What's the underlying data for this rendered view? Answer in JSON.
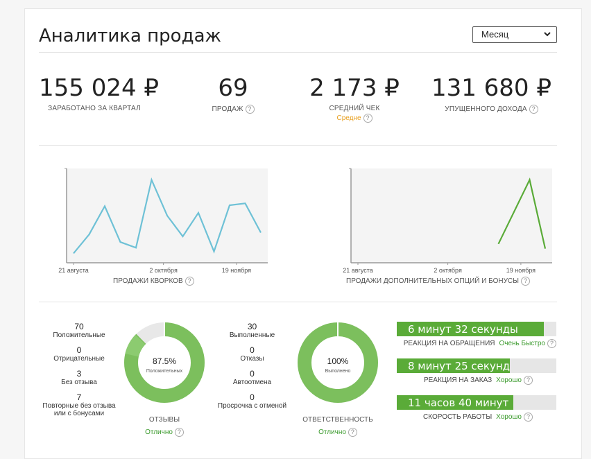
{
  "page": {
    "title": "Аналитика продаж",
    "period": "Месяц"
  },
  "kpis": [
    {
      "value": "155 024 ₽",
      "label": "ЗАРАБОТАНО ЗА КВАРТАЛ",
      "sub": ""
    },
    {
      "value": "69",
      "label": "ПРОДАЖ",
      "sub": ""
    },
    {
      "value": "2 173 ₽",
      "label": "СРЕДНИЙ ЧЕК",
      "sub": "Средне"
    },
    {
      "value": "131 680 ₽",
      "label": "УПУЩЕННОГО ДОХОДА",
      "sub": ""
    }
  ],
  "help_mark": "?",
  "chart_data": [
    {
      "type": "line",
      "title": "ПРОДАЖИ КВОРКОВ",
      "x_tick_labels": [
        "21 августа",
        "2 октября",
        "19 ноября"
      ],
      "values": [
        10,
        30,
        60,
        22,
        16,
        88,
        50,
        28,
        53,
        12,
        61,
        63,
        32
      ],
      "ylim": [
        0,
        100
      ],
      "color": "#6ec1d6"
    },
    {
      "type": "line",
      "title": "ПРОДАЖИ ДОПОЛНИТЕЛЬНЫХ ОПЦИЙ И БОНУСЫ",
      "x_tick_labels": [
        "21 августа",
        "2 октября",
        "19 ноября"
      ],
      "values": [
        null,
        null,
        null,
        null,
        null,
        null,
        null,
        null,
        null,
        20,
        null,
        88,
        15
      ],
      "ylim": [
        0,
        100
      ],
      "color": "#5aab38"
    }
  ],
  "reviews": {
    "items": [
      {
        "n": "70",
        "label": "Положительные"
      },
      {
        "n": "0",
        "label": "Отрицательные"
      },
      {
        "n": "3",
        "label": "Без отзыва"
      },
      {
        "n": "7",
        "label": "Повторные без отзыва или с бонусами"
      }
    ],
    "donut_value": "87.5%",
    "donut_caption": "Положительных",
    "donut_fraction": 0.875,
    "label": "ОТЗЫВЫ",
    "rating": "Отлично"
  },
  "responsibility": {
    "items": [
      {
        "n": "30",
        "label": "Выполненные"
      },
      {
        "n": "0",
        "label": "Отказы"
      },
      {
        "n": "0",
        "label": "Автоотмена"
      },
      {
        "n": "0",
        "label": "Просрочка с отменой"
      }
    ],
    "donut_value": "100%",
    "donut_caption": "Выполнено",
    "donut_fraction": 1.0,
    "label": "ОТВЕТСТВЕННОСТЬ",
    "rating": "Отлично"
  },
  "speed_bars": [
    {
      "text": "6 минут 32 секунды",
      "label": "РЕАКЦИЯ НА ОБРАЩЕНИЯ",
      "rating": "Очень Быстро",
      "fill": 0.92
    },
    {
      "text": "8 минут 25 секунд",
      "label": "РЕАКЦИЯ НА ЗАКАЗ",
      "rating": "Хорошо",
      "fill": 0.71
    },
    {
      "text": "11 часов 40 минут",
      "label": "СКОРОСТЬ РАБОТЫ",
      "rating": "Хорошо",
      "fill": 0.73
    }
  ],
  "colors": {
    "accent_green": "#5aab38",
    "donut_green": "#7cbf5d",
    "line_blue": "#6ec1d6",
    "warning_orange": "#e8a020"
  }
}
